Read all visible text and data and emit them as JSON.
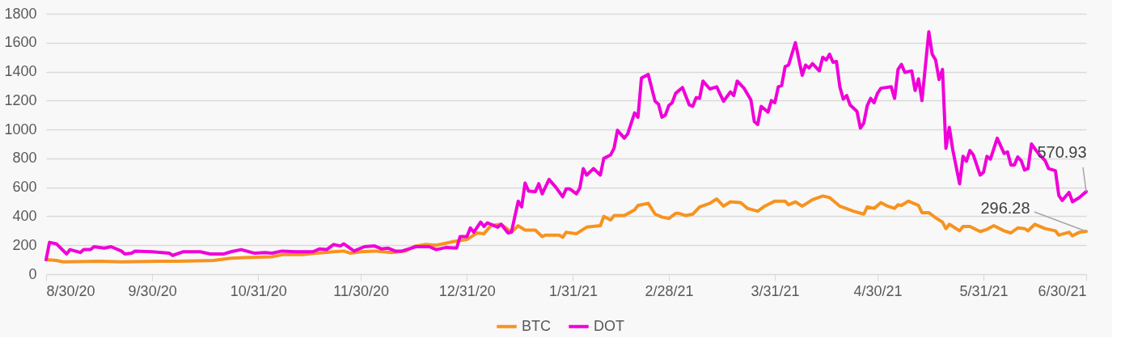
{
  "chart_data": {
    "type": "line",
    "xlim": [
      "2020-08-30",
      "2021-06-30"
    ],
    "xticks": [
      {
        "value": "2020-08-30",
        "label": "8/30/20"
      },
      {
        "value": "2020-09-30",
        "label": "9/30/20"
      },
      {
        "value": "2020-10-31",
        "label": "10/31/20"
      },
      {
        "value": "2020-11-30",
        "label": "11/30/20"
      },
      {
        "value": "2020-12-31",
        "label": "12/31/20"
      },
      {
        "value": "2021-01-31",
        "label": "1/31/21"
      },
      {
        "value": "2021-02-28",
        "label": "2/28/21"
      },
      {
        "value": "2021-03-31",
        "label": "3/31/21"
      },
      {
        "value": "2021-04-30",
        "label": "4/30/21"
      },
      {
        "value": "2021-05-31",
        "label": "5/31/21"
      },
      {
        "value": "2021-06-30",
        "label": "6/30/21"
      }
    ],
    "ylim": [
      0,
      1800
    ],
    "yticks": [
      0,
      200,
      400,
      600,
      800,
      1000,
      1200,
      1400,
      1600,
      1800
    ],
    "grid": "y",
    "legend": "bottom",
    "marker": "none",
    "line_style": "solid",
    "annotations": [
      {
        "text": "570.93",
        "x": "2021-06-30",
        "y": 570.93
      },
      {
        "text": "296.28",
        "x": "2021-06-30",
        "y": 296.28
      }
    ],
    "series": [
      {
        "name": "BTC",
        "color": "#f7931e",
        "x": [
          "2020-08-30",
          "2020-09-02",
          "2020-09-04",
          "2020-09-15",
          "2020-09-21",
          "2020-10-02",
          "2020-10-07",
          "2020-10-18",
          "2020-10-23",
          "2020-10-27",
          "2020-11-04",
          "2020-11-07",
          "2020-11-13",
          "2020-11-17",
          "2020-11-22",
          "2020-11-25",
          "2020-11-27",
          "2020-11-30",
          "2020-12-04",
          "2020-12-09",
          "2020-12-13",
          "2020-12-16",
          "2020-12-19",
          "2020-12-22",
          "2020-12-27",
          "2020-12-31",
          "2021-01-03",
          "2021-01-05",
          "2021-01-07",
          "2021-01-10",
          "2021-01-13",
          "2021-01-15",
          "2021-01-17",
          "2021-01-20",
          "2021-01-22",
          "2021-01-23",
          "2021-01-27",
          "2021-01-28",
          "2021-01-29",
          "2021-02-01",
          "2021-02-04",
          "2021-02-08",
          "2021-02-09",
          "2021-02-11",
          "2021-02-12",
          "2021-02-15",
          "2021-02-18",
          "2021-02-19",
          "2021-02-22",
          "2021-02-24",
          "2021-02-26",
          "2021-02-28",
          "2021-03-02",
          "2021-03-03",
          "2021-03-05",
          "2021-03-07",
          "2021-03-09",
          "2021-03-12",
          "2021-03-14",
          "2021-03-16",
          "2021-03-18",
          "2021-03-21",
          "2021-03-23",
          "2021-03-26",
          "2021-03-28",
          "2021-03-31",
          "2021-04-03",
          "2021-04-04",
          "2021-04-06",
          "2021-04-08",
          "2021-04-11",
          "2021-04-14",
          "2021-04-16",
          "2021-04-19",
          "2021-04-23",
          "2021-04-26",
          "2021-04-27",
          "2021-04-29",
          "2021-05-01",
          "2021-05-03",
          "2021-05-05",
          "2021-05-06",
          "2021-05-07",
          "2021-05-09",
          "2021-05-12",
          "2021-05-13",
          "2021-05-15",
          "2021-05-17",
          "2021-05-19",
          "2021-05-20",
          "2021-05-21",
          "2021-05-24",
          "2021-05-25",
          "2021-05-27",
          "2021-05-30",
          "2021-06-01",
          "2021-06-03",
          "2021-06-06",
          "2021-06-08",
          "2021-06-10",
          "2021-06-12",
          "2021-06-13",
          "2021-06-15",
          "2021-06-18",
          "2021-06-21",
          "2021-06-22",
          "2021-06-25",
          "2021-06-26",
          "2021-06-28",
          "2021-06-30"
        ],
        "values": [
          100,
          95,
          85,
          90,
          85,
          90,
          90,
          95,
          110,
          115,
          120,
          135,
          135,
          145,
          155,
          160,
          145,
          155,
          160,
          150,
          160,
          195,
          205,
          200,
          225,
          240,
          285,
          280,
          335,
          345,
          290,
          335,
          305,
          305,
          260,
          270,
          270,
          255,
          290,
          280,
          325,
          335,
          400,
          375,
          405,
          405,
          445,
          475,
          490,
          415,
          395,
          385,
          420,
          420,
          405,
          415,
          465,
          490,
          520,
          470,
          500,
          495,
          455,
          435,
          470,
          505,
          505,
          480,
          500,
          470,
          515,
          540,
          530,
          470,
          435,
          415,
          465,
          455,
          495,
          470,
          455,
          480,
          475,
          505,
          475,
          425,
          425,
          390,
          360,
          315,
          345,
          300,
          330,
          330,
          295,
          310,
          335,
          300,
          285,
          320,
          315,
          300,
          345,
          315,
          300,
          270,
          290,
          265,
          290,
          296.28
        ]
      },
      {
        "name": "DOT",
        "color": "#f000d8",
        "x": [
          "2020-08-30",
          "2020-08-31",
          "2020-09-02",
          "2020-09-05",
          "2020-09-06",
          "2020-09-09",
          "2020-09-10",
          "2020-09-12",
          "2020-09-13",
          "2020-09-16",
          "2020-09-18",
          "2020-09-21",
          "2020-09-22",
          "2020-09-24",
          "2020-09-25",
          "2020-09-30",
          "2020-10-05",
          "2020-10-06",
          "2020-10-09",
          "2020-10-14",
          "2020-10-17",
          "2020-10-21",
          "2020-10-23",
          "2020-10-26",
          "2020-10-30",
          "2020-11-02",
          "2020-11-04",
          "2020-11-07",
          "2020-11-11",
          "2020-11-16",
          "2020-11-18",
          "2020-11-20",
          "2020-11-22",
          "2020-11-24",
          "2020-11-25",
          "2020-11-28",
          "2020-12-01",
          "2020-12-04",
          "2020-12-06",
          "2020-12-08",
          "2020-12-10",
          "2020-12-12",
          "2020-12-16",
          "2020-12-20",
          "2020-12-22",
          "2020-12-25",
          "2020-12-28",
          "2020-12-29",
          "2020-12-31",
          "2021-01-01",
          "2021-01-02",
          "2021-01-04",
          "2021-01-05",
          "2021-01-06",
          "2021-01-09",
          "2021-01-10",
          "2021-01-12",
          "2021-01-13",
          "2021-01-15",
          "2021-01-16",
          "2021-01-17",
          "2021-01-18",
          "2021-01-20",
          "2021-01-21",
          "2021-01-22",
          "2021-01-24",
          "2021-01-26",
          "2021-01-28",
          "2021-01-29",
          "2021-01-30",
          "2021-02-01",
          "2021-02-02",
          "2021-02-03",
          "2021-02-04",
          "2021-02-06",
          "2021-02-08",
          "2021-02-09",
          "2021-02-11",
          "2021-02-12",
          "2021-02-13",
          "2021-02-15",
          "2021-02-16",
          "2021-02-18",
          "2021-02-19",
          "2021-02-20",
          "2021-02-22",
          "2021-02-24",
          "2021-02-25",
          "2021-02-26",
          "2021-02-27",
          "2021-02-28",
          "2021-03-01",
          "2021-03-02",
          "2021-03-04",
          "2021-03-06",
          "2021-03-07",
          "2021-03-08",
          "2021-03-09",
          "2021-03-10",
          "2021-03-12",
          "2021-03-14",
          "2021-03-16",
          "2021-03-18",
          "2021-03-19",
          "2021-03-20",
          "2021-03-22",
          "2021-03-24",
          "2021-03-25",
          "2021-03-26",
          "2021-03-27",
          "2021-03-29",
          "2021-03-30",
          "2021-03-31",
          "2021-04-01",
          "2021-04-02",
          "2021-04-03",
          "2021-04-04",
          "2021-04-06",
          "2021-04-08",
          "2021-04-09",
          "2021-04-10",
          "2021-04-11",
          "2021-04-13",
          "2021-04-14",
          "2021-04-15",
          "2021-04-16",
          "2021-04-17",
          "2021-04-18",
          "2021-04-19",
          "2021-04-20",
          "2021-04-21",
          "2021-04-22",
          "2021-04-24",
          "2021-04-25",
          "2021-04-26",
          "2021-04-27",
          "2021-04-28",
          "2021-04-29",
          "2021-04-30",
          "2021-05-01",
          "2021-05-04",
          "2021-05-05",
          "2021-05-06",
          "2021-05-07",
          "2021-05-08",
          "2021-05-10",
          "2021-05-11",
          "2021-05-12",
          "2021-05-13",
          "2021-05-15",
          "2021-05-16",
          "2021-05-17",
          "2021-05-18",
          "2021-05-19",
          "2021-05-20",
          "2021-05-21",
          "2021-05-22",
          "2021-05-24",
          "2021-05-25",
          "2021-05-26",
          "2021-05-27",
          "2021-05-28",
          "2021-05-30",
          "2021-05-31",
          "2021-06-01",
          "2021-06-02",
          "2021-06-04",
          "2021-06-06",
          "2021-06-07",
          "2021-06-08",
          "2021-06-09",
          "2021-06-10",
          "2021-06-11",
          "2021-06-12",
          "2021-06-13",
          "2021-06-14",
          "2021-06-16",
          "2021-06-18",
          "2021-06-19",
          "2021-06-21",
          "2021-06-22",
          "2021-06-23",
          "2021-06-25",
          "2021-06-26",
          "2021-06-28",
          "2021-06-30"
        ],
        "values": [
          100,
          220,
          210,
          140,
          170,
          150,
          170,
          170,
          190,
          180,
          190,
          160,
          140,
          145,
          160,
          155,
          145,
          130,
          155,
          155,
          140,
          140,
          155,
          170,
          145,
          150,
          145,
          160,
          155,
          155,
          175,
          170,
          205,
          195,
          210,
          160,
          190,
          195,
          175,
          180,
          160,
          160,
          190,
          190,
          170,
          185,
          180,
          260,
          260,
          320,
          290,
          360,
          330,
          355,
          325,
          345,
          285,
          290,
          505,
          465,
          630,
          575,
          570,
          625,
          555,
          655,
          600,
          535,
          590,
          590,
          555,
          595,
          730,
          685,
          730,
          685,
          800,
          825,
          870,
          995,
          940,
          970,
          1115,
          1085,
          1355,
          1380,
          1195,
          1175,
          1085,
          1100,
          1165,
          1185,
          1250,
          1290,
          1170,
          1160,
          1220,
          1215,
          1335,
          1280,
          1295,
          1195,
          1260,
          1235,
          1335,
          1285,
          1205,
          1055,
          1035,
          1160,
          1120,
          1200,
          1185,
          1295,
          1305,
          1435,
          1445,
          1600,
          1375,
          1445,
          1425,
          1455,
          1405,
          1500,
          1480,
          1520,
          1465,
          1470,
          1295,
          1210,
          1235,
          1170,
          1125,
          1010,
          1045,
          1165,
          1215,
          1185,
          1250,
          1285,
          1295,
          1215,
          1415,
          1450,
          1395,
          1405,
          1270,
          1350,
          1200,
          1675,
          1520,
          1480,
          1345,
          1415,
          870,
          1015,
          860,
          625,
          815,
          780,
          855,
          825,
          685,
          705,
          815,
          795,
          940,
          835,
          845,
          755,
          755,
          810,
          785,
          720,
          730,
          900,
          835,
          785,
          730,
          715,
          545,
          510,
          565,
          500,
          530,
          570.93
        ]
      }
    ]
  }
}
